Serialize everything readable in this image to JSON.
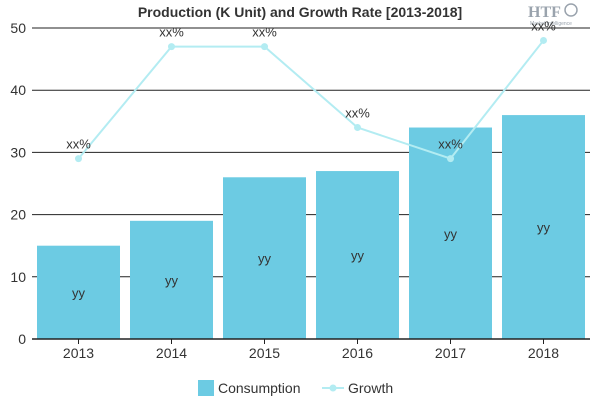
{
  "chart_data": {
    "type": "bar",
    "title": "Production (K Unit) and Growth Rate [2013-2018]",
    "categories": [
      "2013",
      "2014",
      "2015",
      "2016",
      "2017",
      "2018"
    ],
    "series": [
      {
        "name": "Consumption",
        "type": "bar",
        "values": [
          15,
          19,
          26,
          27,
          34,
          36
        ],
        "labels": [
          "yy",
          "yy",
          "yy",
          "yy",
          "yy",
          "yy"
        ],
        "color": "#6ccbe3"
      },
      {
        "name": "Growth",
        "type": "line",
        "values": [
          29,
          47,
          47,
          34,
          29,
          48
        ],
        "labels": [
          "xx%",
          "xx%",
          "xx%",
          "xx%",
          "xx%",
          "xx%"
        ],
        "color": "#b3ecf2"
      }
    ],
    "ylim": [
      0,
      50
    ],
    "yticks": [
      0,
      10,
      20,
      30,
      40,
      50
    ],
    "grid": true,
    "legend": "bottom"
  },
  "logo": {
    "name": "HTF",
    "tagline": "Market Intelligence"
  }
}
